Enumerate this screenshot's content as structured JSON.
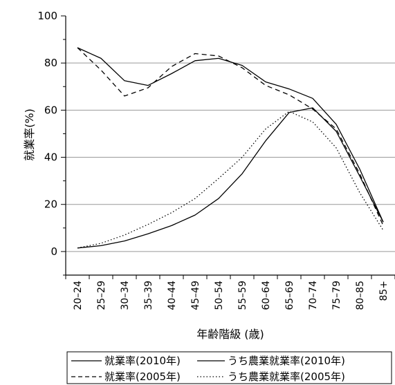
{
  "chart_data": {
    "type": "line",
    "xlabel": "年齢階級 (歳)",
    "ylabel": "就業率(%)",
    "ylim": [
      -10,
      100
    ],
    "yticks": [
      0,
      20,
      40,
      60,
      80,
      100
    ],
    "grid": "horizontal",
    "legend_position": "bottom",
    "categories": [
      "20–24",
      "25–29",
      "30–34",
      "35–39",
      "40–44",
      "45–49",
      "50–54",
      "55–59",
      "60–64",
      "65–69",
      "70–74",
      "75–79",
      "80–85",
      "85+"
    ],
    "series": [
      {
        "name": "就業率(2010年)",
        "style": "solid",
        "values": [
          86.5,
          82,
          72.5,
          70.5,
          75.5,
          81,
          82,
          79,
          72,
          69,
          65,
          54,
          35,
          12.5
        ]
      },
      {
        "name": "就業率(2005年)",
        "style": "dashed",
        "values": [
          86.5,
          77,
          66,
          69.5,
          78.5,
          84,
          83,
          78,
          70.5,
          66.5,
          60.5,
          52,
          33,
          11
        ]
      },
      {
        "name": "うち農業就業率(2010年)",
        "style": "solid",
        "values": [
          1.5,
          2.5,
          4.5,
          7.5,
          11,
          15.5,
          22.5,
          33,
          47,
          59,
          61,
          51,
          32,
          12.5
        ]
      },
      {
        "name": "うち農業就業率(2005年)",
        "style": "dotted",
        "values": [
          1.5,
          3.5,
          7,
          11.5,
          16.5,
          22.5,
          31,
          40,
          52,
          59.5,
          55,
          44,
          25,
          9
        ]
      }
    ]
  },
  "colors": {
    "line": "#000000",
    "grid": "#999999",
    "background": "#ffffff"
  }
}
